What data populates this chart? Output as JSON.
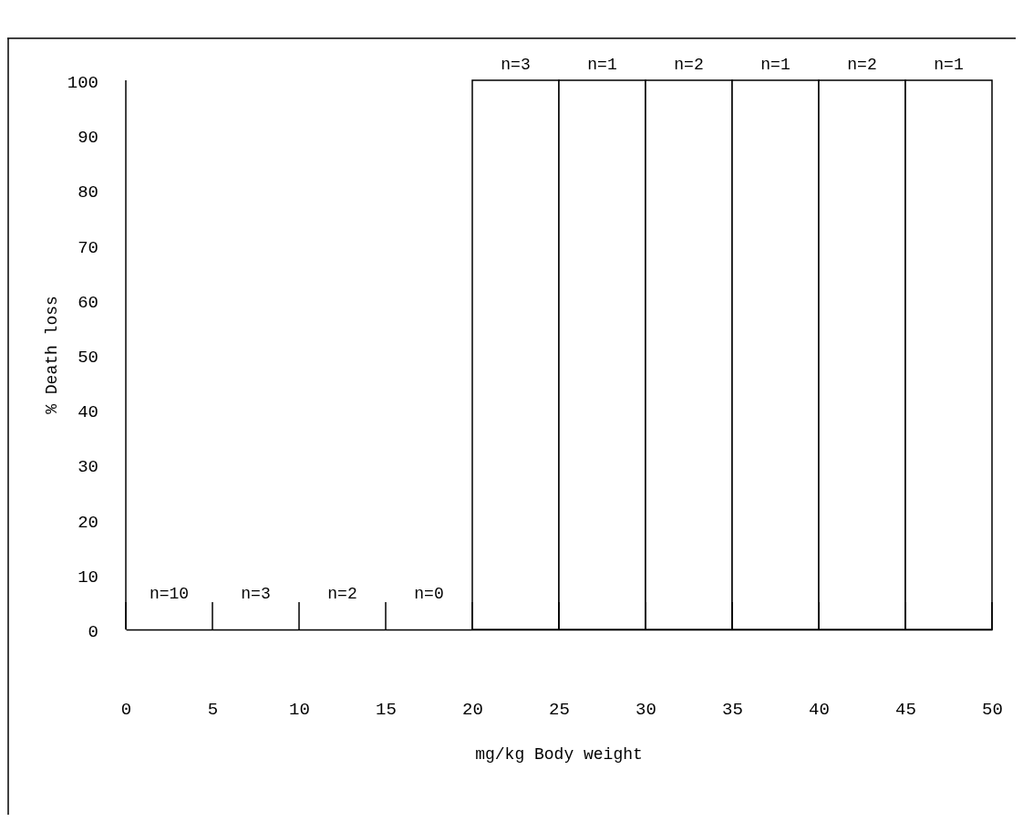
{
  "chart_data": {
    "type": "histogram",
    "xlabel": "mg/kg Body weight",
    "ylabel": "% Death loss",
    "bins": [
      0,
      5,
      10,
      15,
      20,
      25,
      30,
      35,
      40,
      45,
      50
    ],
    "values": [
      0,
      0,
      0,
      0,
      100,
      100,
      100,
      100,
      100,
      100
    ],
    "color": "#ffffff",
    "xlim": [
      0,
      50
    ],
    "xticks": [
      0,
      5,
      10,
      15,
      20,
      25,
      30,
      35,
      40,
      45,
      50
    ],
    "ylim": [
      0,
      100
    ],
    "yticks": [
      0,
      10,
      20,
      30,
      40,
      50,
      60,
      70,
      80,
      90,
      100
    ],
    "annotations": [
      {
        "text": "n=10",
        "x": 2.5,
        "y": 0
      },
      {
        "text": "n=3",
        "x": 7.5,
        "y": 0
      },
      {
        "text": "n=2",
        "x": 12.5,
        "y": 0
      },
      {
        "text": "n=0",
        "x": 17.5,
        "y": 0
      },
      {
        "text": "n=3",
        "x": 22.5,
        "y": 100
      },
      {
        "text": "n=1",
        "x": 27.5,
        "y": 100
      },
      {
        "text": "n=2",
        "x": 32.5,
        "y": 100
      },
      {
        "text": "n=1",
        "x": 37.5,
        "y": 100
      },
      {
        "text": "n=2",
        "x": 42.5,
        "y": 100
      },
      {
        "text": "n=1",
        "x": 47.5,
        "y": 100
      }
    ]
  }
}
